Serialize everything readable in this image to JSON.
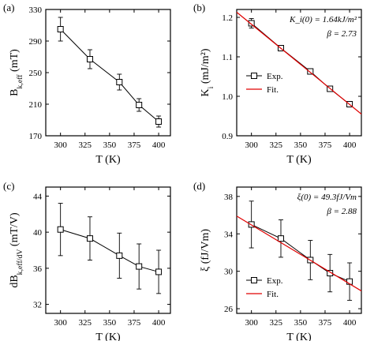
{
  "figure": {
    "colors": {
      "axis": "#000000",
      "data": "#000000",
      "fit": "#e00000"
    }
  },
  "chart_data": [
    {
      "panel": "(a)",
      "type": "line",
      "x": [
        300,
        330,
        360,
        380,
        400
      ],
      "series": [
        {
          "values": [
            305,
            267,
            238,
            209,
            188
          ],
          "errors": [
            15,
            12,
            10,
            8,
            7
          ],
          "marker": "open-square"
        }
      ],
      "xlabel": "T (K)",
      "ylabel": "B_k,eff (mT)",
      "xlim": [
        285,
        412
      ],
      "ylim": [
        170,
        330
      ],
      "xticks": [
        300,
        325,
        350,
        375,
        400
      ],
      "yticks": [
        170,
        210,
        250,
        290,
        330
      ],
      "grid": false,
      "legend": null
    },
    {
      "panel": "(b)",
      "type": "line",
      "x": [
        300,
        330,
        360,
        380,
        400
      ],
      "series": [
        {
          "name": "Exp.",
          "values": [
            1.185,
            1.122,
            1.063,
            1.019,
            0.98
          ],
          "errors": [
            0.012,
            0.006,
            0.006,
            0.006,
            0.006
          ],
          "marker": "open-square"
        },
        {
          "name": "Fit.",
          "x": [
            285,
            412
          ],
          "values": [
            1.213,
            0.955
          ],
          "color": "#e00000"
        }
      ],
      "annotations": [
        "K_i(0) = 1.64kJ/m²",
        "β = 2.73"
      ],
      "xlabel": "T (K)",
      "ylabel": "K_i (mJ/m²)",
      "xlim": [
        285,
        412
      ],
      "ylim": [
        0.9,
        1.22
      ],
      "xticks": [
        300,
        325,
        350,
        375,
        400
      ],
      "yticks": [
        0.9,
        1.0,
        1.1,
        1.2
      ],
      "grid": false,
      "legend": "center-left"
    },
    {
      "panel": "(c)",
      "type": "line",
      "x": [
        300,
        330,
        360,
        380,
        400
      ],
      "series": [
        {
          "values": [
            40.3,
            39.3,
            37.4,
            36.2,
            35.6
          ],
          "errors": [
            2.9,
            2.4,
            2.5,
            2.5,
            2.4
          ],
          "marker": "open-square"
        }
      ],
      "xlabel": "T (K)",
      "ylabel": "dB_k,eff/dV (mT/V)",
      "xlim": [
        285,
        412
      ],
      "ylim": [
        31,
        45
      ],
      "xticks": [
        300,
        325,
        350,
        375,
        400
      ],
      "yticks": [
        32,
        36,
        40,
        44
      ],
      "grid": false,
      "legend": null
    },
    {
      "panel": "(d)",
      "type": "line",
      "x": [
        300,
        330,
        360,
        380,
        400
      ],
      "series": [
        {
          "name": "Exp.",
          "values": [
            35.0,
            33.5,
            31.2,
            29.8,
            28.9
          ],
          "errors": [
            2.5,
            2.0,
            2.1,
            2.0,
            2.0
          ],
          "marker": "open-square"
        },
        {
          "name": "Fit.",
          "x": [
            285,
            412
          ],
          "values": [
            35.9,
            27.9
          ],
          "color": "#e00000"
        }
      ],
      "annotations": [
        "ξ(0) = 49.3fJ/Vm",
        "β = 2.88"
      ],
      "xlabel": "T (K)",
      "ylabel": "ξ (fJ/Vm)",
      "xlim": [
        285,
        412
      ],
      "ylim": [
        25.5,
        39
      ],
      "xticks": [
        300,
        325,
        350,
        375,
        400
      ],
      "yticks": [
        26,
        30,
        34,
        38
      ],
      "grid": false,
      "legend": "lower-left"
    }
  ]
}
